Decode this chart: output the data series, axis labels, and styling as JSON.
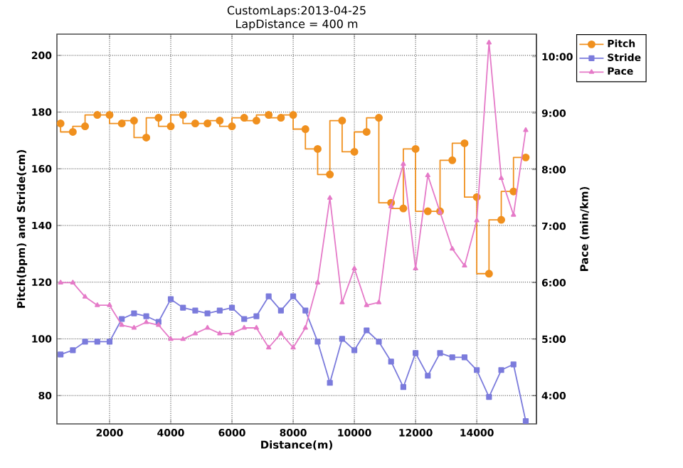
{
  "chart_data": {
    "type": "line",
    "title": "CustomLaps:2013-04-25",
    "subtitle": "LapDistance = 400 m",
    "xlabel": "Distance(m)",
    "ylabel": "Pitch(bpm) and Stride(cm)",
    "y2label": "Pace (min/km)",
    "x": [
      400,
      800,
      1200,
      1600,
      2000,
      2400,
      2800,
      3200,
      3600,
      4000,
      4400,
      4800,
      5200,
      5600,
      6000,
      6400,
      6800,
      7200,
      7600,
      8000,
      8400,
      8800,
      9200,
      9600,
      10000,
      10400,
      10800,
      11200,
      11600,
      12000,
      12400,
      12800,
      13200,
      13600,
      14000,
      14400,
      14800,
      15200,
      15600
    ],
    "series": [
      {
        "name": "Pitch",
        "type": "step",
        "marker": "circle",
        "color": "#f0901e",
        "values": [
          176,
          173,
          175,
          179,
          179,
          176,
          177,
          171,
          178,
          175,
          179,
          176,
          176,
          177,
          175,
          178,
          177,
          179,
          178,
          179,
          174,
          167,
          158,
          177,
          166,
          173,
          178,
          148,
          146,
          167,
          145,
          145,
          163,
          169,
          150,
          123,
          142,
          152,
          164
        ]
      },
      {
        "name": "Stride",
        "marker": "square",
        "color": "#7b7bdc",
        "values": [
          94.5,
          96,
          99,
          99,
          99,
          107,
          109,
          108,
          106,
          114,
          111,
          110,
          109,
          110,
          111,
          107,
          108,
          115,
          110,
          115,
          110,
          99,
          84.5,
          100,
          96,
          103,
          99,
          92,
          83,
          95,
          87,
          95,
          93.5,
          93.5,
          89,
          79.5,
          89,
          91,
          71
        ]
      },
      {
        "name": "Pace",
        "marker": "triangle",
        "axis": "y2",
        "color": "#e57ac8",
        "values": [
          6.0,
          6.0,
          5.75,
          5.6,
          5.6,
          5.25,
          5.2,
          5.3,
          5.25,
          5.0,
          5.0,
          5.1,
          5.2,
          5.1,
          5.1,
          5.2,
          5.2,
          4.85,
          5.1,
          4.85,
          5.2,
          6.0,
          7.5,
          5.65,
          6.25,
          5.6,
          5.65,
          7.35,
          8.1,
          6.25,
          7.9,
          7.25,
          6.6,
          6.3,
          7.1,
          10.25,
          7.85,
          7.2,
          8.7
        ]
      }
    ],
    "xlim": [
      280,
      15950
    ],
    "xticks": [
      2000,
      4000,
      6000,
      8000,
      10000,
      12000,
      14000
    ],
    "ylim": [
      70,
      207.5
    ],
    "yticks": [
      80,
      100,
      120,
      140,
      160,
      180,
      200
    ],
    "y2lim": [
      3.5,
      10.4
    ],
    "y2ticks": [
      {
        "value": 4,
        "label": "4:00"
      },
      {
        "value": 5,
        "label": "5:00"
      },
      {
        "value": 6,
        "label": "6:00"
      },
      {
        "value": 7,
        "label": "7:00"
      },
      {
        "value": 8,
        "label": "8:00"
      },
      {
        "value": 9,
        "label": "9:00"
      },
      {
        "value": 10,
        "label": "10:00"
      }
    ],
    "grid": true,
    "legend": "top right"
  }
}
